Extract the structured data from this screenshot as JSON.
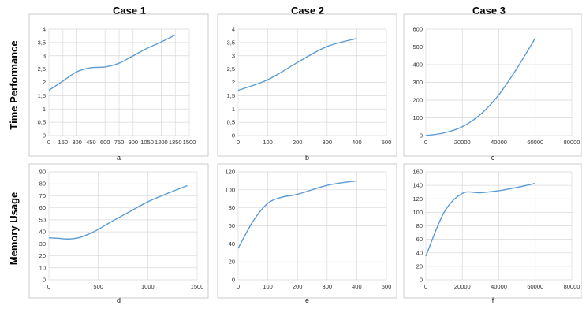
{
  "columns": [
    "Case 1",
    "Case 2",
    "Case 3"
  ],
  "rows": [
    "Time Performance",
    "Memory Usage"
  ],
  "line_color": "#5b9bd5",
  "chart_data": [
    {
      "type": "line",
      "row": 0,
      "col": 0,
      "label": "a",
      "x": [
        0,
        150,
        300,
        450,
        600,
        750,
        900,
        1050,
        1200,
        1350
      ],
      "values": [
        1.7,
        2.05,
        2.4,
        2.55,
        2.58,
        2.72,
        3.0,
        3.28,
        3.52,
        3.78
      ],
      "xlim": [
        0,
        1500
      ],
      "ylim": [
        0,
        4
      ],
      "xticks": [
        "0",
        "150",
        "300",
        "450",
        "600",
        "750",
        "900",
        "1050",
        "1200",
        "1350",
        "1500"
      ],
      "yticks": [
        "0",
        "0,5",
        "1",
        "1,5",
        "2",
        "2,5",
        "3",
        "3,5",
        "4"
      ]
    },
    {
      "type": "line",
      "row": 0,
      "col": 1,
      "label": "b",
      "x": [
        0,
        100,
        200,
        300,
        400
      ],
      "values": [
        1.7,
        2.1,
        2.75,
        3.35,
        3.65
      ],
      "xlim": [
        0,
        500
      ],
      "ylim": [
        0,
        4
      ],
      "xticks": [
        "0",
        "100",
        "200",
        "300",
        "400",
        "500"
      ],
      "yticks": [
        "0",
        "0,5",
        "1",
        "1,5",
        "2",
        "2,5",
        "3",
        "3,5",
        "4"
      ]
    },
    {
      "type": "line",
      "row": 0,
      "col": 2,
      "label": "c",
      "x": [
        0,
        10000,
        20000,
        30000,
        40000,
        50000,
        60000
      ],
      "values": [
        0,
        15,
        50,
        120,
        230,
        380,
        550
      ],
      "xlim": [
        0,
        80000
      ],
      "ylim": [
        0,
        600
      ],
      "xticks": [
        "0",
        "20000",
        "40000",
        "60000",
        "80000"
      ],
      "yticks": [
        "0",
        "100",
        "200",
        "300",
        "400",
        "500",
        "600"
      ]
    },
    {
      "type": "line",
      "row": 1,
      "col": 0,
      "label": "d",
      "x": [
        0,
        100,
        200,
        300,
        400,
        500,
        600,
        800,
        1000,
        1200,
        1400
      ],
      "values": [
        35,
        34.5,
        34,
        35,
        38,
        42,
        47,
        56,
        65,
        72,
        78.5
      ],
      "xlim": [
        0,
        1500
      ],
      "ylim": [
        0,
        90
      ],
      "xticks": [
        "0",
        "500",
        "1000",
        "1500"
      ],
      "yticks": [
        "0",
        "10",
        "20",
        "30",
        "40",
        "50",
        "60",
        "70",
        "80",
        "90"
      ]
    },
    {
      "type": "line",
      "row": 1,
      "col": 1,
      "label": "e",
      "x": [
        0,
        50,
        100,
        150,
        200,
        300,
        400
      ],
      "values": [
        35,
        65,
        85,
        92,
        95,
        105,
        110
      ],
      "xlim": [
        0,
        500
      ],
      "ylim": [
        0,
        120
      ],
      "xticks": [
        "0",
        "100",
        "200",
        "300",
        "400",
        "500"
      ],
      "yticks": [
        "0",
        "20",
        "40",
        "60",
        "80",
        "100",
        "120"
      ]
    },
    {
      "type": "line",
      "row": 1,
      "col": 2,
      "label": "f",
      "x": [
        0,
        10000,
        20000,
        30000,
        40000,
        50000,
        60000
      ],
      "values": [
        35,
        100,
        128,
        129,
        132,
        137,
        143
      ],
      "xlim": [
        0,
        80000
      ],
      "ylim": [
        0,
        160
      ],
      "xticks": [
        "0",
        "20000",
        "40000",
        "60000",
        "80000"
      ],
      "yticks": [
        "0",
        "20",
        "40",
        "60",
        "80",
        "100",
        "120",
        "140",
        "160"
      ]
    }
  ]
}
